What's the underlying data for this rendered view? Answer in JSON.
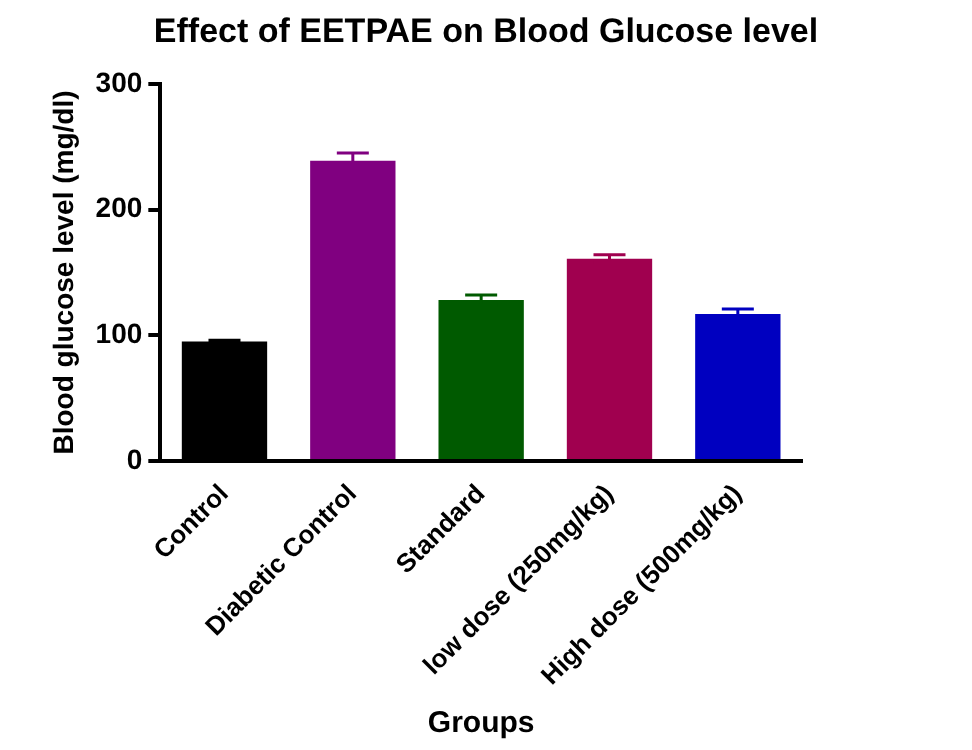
{
  "chart_data": {
    "type": "bar",
    "title": "Effect of EETPAE on Blood Glucose level",
    "xlabel": "Groups",
    "ylabel": "Blood glucose level (mg/dl)",
    "categories": [
      "Control",
      "Diabetic Control",
      "Standard",
      "low dose (250mg/kg)",
      "High dose (500mg/kg)"
    ],
    "values": [
      95,
      239,
      128,
      161,
      117
    ],
    "errors": [
      1,
      6,
      4,
      3,
      4
    ],
    "colors": [
      "#000000",
      "#800080",
      "#005a00",
      "#a0004f",
      "#0000c0"
    ],
    "ylim": [
      0,
      300
    ],
    "yticks": [
      0,
      100,
      200,
      300
    ],
    "grid": false,
    "legend": false
  }
}
